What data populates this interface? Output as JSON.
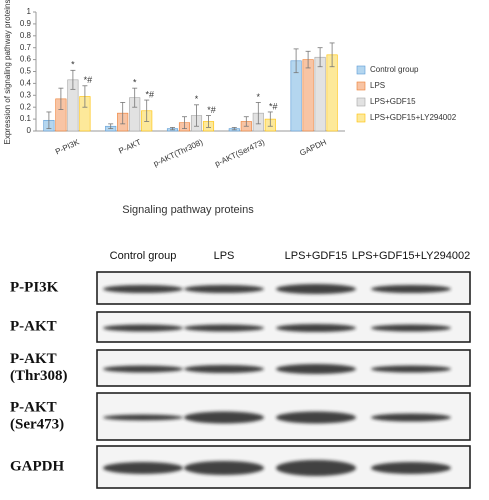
{
  "chart_data": {
    "type": "bar",
    "ylabel": "Expression of signaling pathway proteins",
    "xlabel": "Signaling pathway proteins",
    "categories": [
      "P-PI3K",
      "P-AKT",
      "p-AKT(Thr308)",
      "p-AKT(Ser473)",
      "GAPDH"
    ],
    "series": [
      {
        "name": "Control group",
        "color": "#b4d6ef",
        "edge": "#5b9bd5",
        "values": [
          0.09,
          0.04,
          0.02,
          0.02,
          0.59
        ],
        "errors": [
          0.07,
          0.02,
          0.01,
          0.01,
          0.1
        ]
      },
      {
        "name": "LPS",
        "color": "#f8c4a4",
        "edge": "#ed7d31",
        "values": [
          0.27,
          0.15,
          0.07,
          0.08,
          0.6
        ],
        "errors": [
          0.09,
          0.09,
          0.05,
          0.04,
          0.07
        ]
      },
      {
        "name": "LPS+GDF15",
        "color": "#e2e2e2",
        "edge": "#a5a5a5",
        "values": [
          0.43,
          0.28,
          0.13,
          0.15,
          0.62
        ],
        "errors": [
          0.08,
          0.08,
          0.09,
          0.09,
          0.08
        ],
        "markers": [
          "*",
          "*",
          "*",
          "*",
          null
        ]
      },
      {
        "name": "LPS+GDF15+LY294002",
        "color": "#fde99a",
        "edge": "#ffc000",
        "values": [
          0.29,
          0.17,
          0.08,
          0.1,
          0.64
        ],
        "errors": [
          0.09,
          0.09,
          0.05,
          0.06,
          0.1
        ],
        "markers": [
          "*#",
          "*#",
          "*#",
          "*#",
          null
        ]
      }
    ],
    "ylim": [
      0,
      1
    ],
    "yticks": [
      0,
      0.1,
      0.2,
      0.3,
      0.4,
      0.5,
      0.6,
      0.7,
      0.8,
      0.9,
      1
    ]
  },
  "blot": {
    "columns": [
      "Control group",
      "LPS",
      "LPS+GDF15",
      "LPS+GDF15+LY294002"
    ],
    "rows": [
      [
        "P-PI3K"
      ],
      [
        "P-AKT"
      ],
      [
        "P-AKT",
        "(Thr308)"
      ],
      [
        "P-AKT",
        "(Ser473)"
      ],
      [
        "GAPDH"
      ]
    ]
  }
}
